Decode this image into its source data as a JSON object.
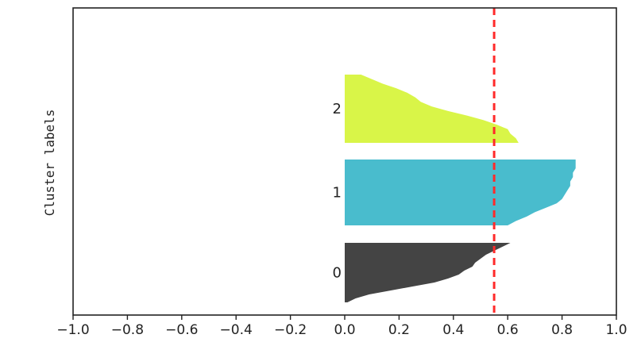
{
  "chart_data": {
    "type": "area",
    "title": "",
    "xlabel": "",
    "ylabel": "Cluster labels",
    "xlim": [
      -1.0,
      1.0
    ],
    "xticks": [
      "−1.0",
      "−0.8",
      "−0.6",
      "−0.4",
      "−0.2",
      "0.0",
      "0.2",
      "0.4",
      "0.6",
      "0.8",
      "1.0"
    ],
    "xtick_values": [
      -1.0,
      -0.8,
      -0.6,
      -0.4,
      -0.2,
      0.0,
      0.2,
      0.4,
      0.6,
      0.8,
      1.0
    ],
    "grid": false,
    "reference_line": {
      "x": 0.55,
      "style": "dashed",
      "color": "#ff2a2a"
    },
    "clusters": [
      {
        "label": "0",
        "color": "#444444",
        "silhouette_profile": [
          0.61,
          0.58,
          0.55,
          0.52,
          0.5,
          0.48,
          0.47,
          0.44,
          0.42,
          0.38,
          0.33,
          0.25,
          0.17,
          0.09,
          0.04,
          0.01
        ]
      },
      {
        "label": "1",
        "color": "#49bccd",
        "silhouette_profile": [
          0.85,
          0.85,
          0.85,
          0.84,
          0.84,
          0.83,
          0.83,
          0.82,
          0.81,
          0.8,
          0.78,
          0.74,
          0.7,
          0.67,
          0.63,
          0.6
        ]
      },
      {
        "label": "2",
        "color": "#d9f548",
        "silhouette_profile": [
          0.06,
          0.1,
          0.14,
          0.19,
          0.23,
          0.26,
          0.28,
          0.32,
          0.38,
          0.45,
          0.51,
          0.56,
          0.6,
          0.61,
          0.63,
          0.64
        ]
      }
    ]
  }
}
